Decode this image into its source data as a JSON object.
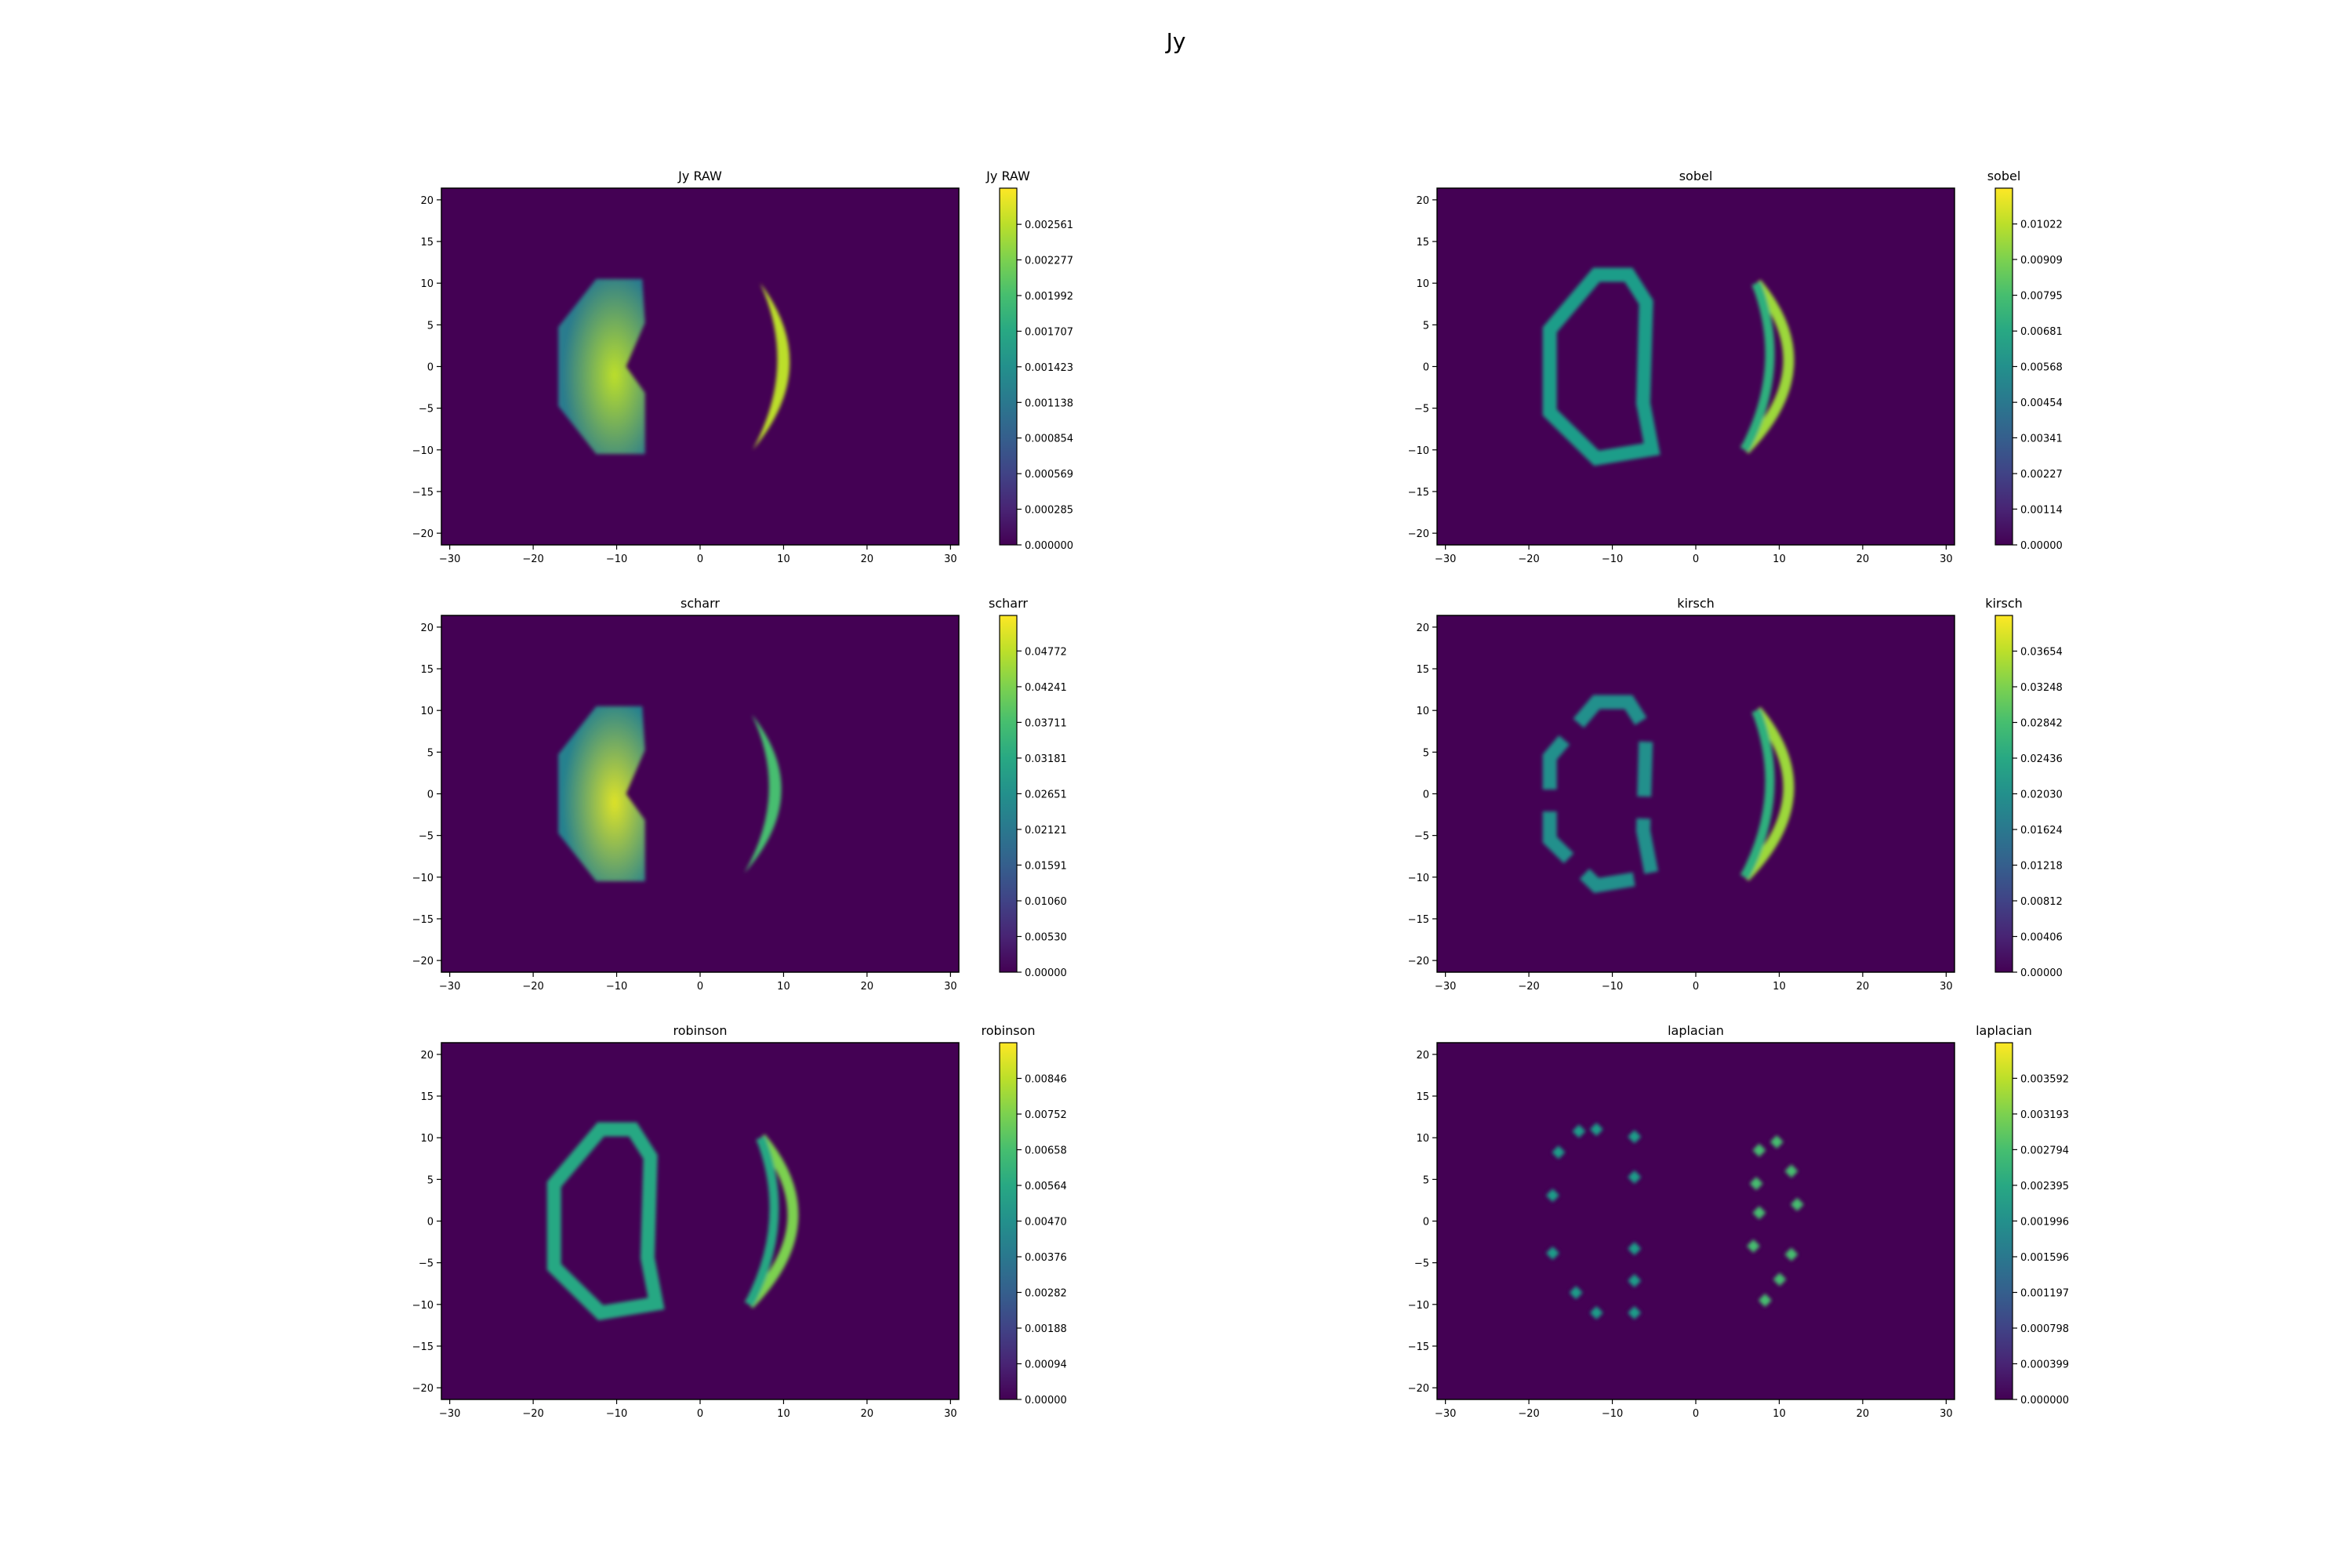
{
  "figure": {
    "title": "Jy"
  },
  "colormap": {
    "name": "viridis",
    "low": "#440154",
    "high": "#fde725"
  },
  "axes_common": {
    "xlim": [
      -31,
      31
    ],
    "ylim": [
      -21.4,
      21.4
    ],
    "xticks": [
      -30,
      -20,
      -10,
      0,
      10,
      20,
      30
    ],
    "yticks": [
      -20,
      -15,
      -10,
      -5,
      0,
      5,
      10,
      15,
      20
    ]
  },
  "chart_data": [
    {
      "type": "heatmap",
      "title": "Jy RAW",
      "colorbar_label": "Jy RAW",
      "colorbar_ticks": [
        "0.000000",
        "0.000285",
        "0.000569",
        "0.000854",
        "0.001138",
        "0.001423",
        "0.001707",
        "0.001992",
        "0.002277",
        "0.002561"
      ],
      "vmax": 0.00285,
      "features": [
        {
          "shape": "disk",
          "x": -10.5,
          "y": 0,
          "rx": 6.5,
          "ry": 10.5,
          "level": 0.75
        },
        {
          "shape": "crescent",
          "x": 9,
          "y": 0,
          "rx": 3,
          "ry": 10,
          "level": 0.9
        }
      ]
    },
    {
      "type": "heatmap",
      "title": "sobel",
      "colorbar_label": "sobel",
      "colorbar_ticks": [
        "0.00000",
        "0.00114",
        "0.00227",
        "0.00341",
        "0.00454",
        "0.00568",
        "0.00681",
        "0.00795",
        "0.00909",
        "0.01022"
      ],
      "vmax": 0.01136,
      "features": [
        {
          "shape": "ring",
          "x": -10.5,
          "y": 0,
          "rx": 7,
          "ry": 11,
          "level": 0.55
        },
        {
          "shape": "double-arc",
          "x": 9,
          "y": 0,
          "rx": 3.5,
          "ry": 10,
          "level": 0.85
        }
      ]
    },
    {
      "type": "heatmap",
      "title": "scharr",
      "colorbar_label": "scharr",
      "colorbar_ticks": [
        "0.00000",
        "0.00530",
        "0.01060",
        "0.01591",
        "0.02121",
        "0.02651",
        "0.03181",
        "0.03711",
        "0.04241",
        "0.04772"
      ],
      "vmax": 0.053,
      "features": [
        {
          "shape": "disk",
          "x": -10.5,
          "y": 0,
          "rx": 6.5,
          "ry": 10.5,
          "level": 0.8
        },
        {
          "shape": "crescent",
          "x": 8,
          "y": 0,
          "rx": 3,
          "ry": 9.5,
          "level": 0.7
        }
      ]
    },
    {
      "type": "heatmap",
      "title": "kirsch",
      "colorbar_label": "kirsch",
      "colorbar_ticks": [
        "0.00000",
        "0.00406",
        "0.00812",
        "0.01218",
        "0.01624",
        "0.02030",
        "0.02436",
        "0.02842",
        "0.03248",
        "0.03654"
      ],
      "vmax": 0.0406,
      "features": [
        {
          "shape": "broken-ring",
          "x": -10.5,
          "y": 0,
          "rx": 7,
          "ry": 11,
          "level": 0.5
        },
        {
          "shape": "double-arc",
          "x": 9,
          "y": 0,
          "rx": 3.5,
          "ry": 10,
          "level": 0.85
        }
      ]
    },
    {
      "type": "heatmap",
      "title": "robinson",
      "colorbar_label": "robinson",
      "colorbar_ticks": [
        "0.00000",
        "0.00094",
        "0.00188",
        "0.00282",
        "0.00376",
        "0.00470",
        "0.00564",
        "0.00658",
        "0.00752",
        "0.00846"
      ],
      "vmax": 0.0094,
      "features": [
        {
          "shape": "ring",
          "x": -10.5,
          "y": 0,
          "rx": 7,
          "ry": 11,
          "level": 0.6
        },
        {
          "shape": "double-arc",
          "x": 9,
          "y": 0,
          "rx": 3.5,
          "ry": 10,
          "level": 0.8
        }
      ]
    },
    {
      "type": "heatmap",
      "title": "laplacian",
      "colorbar_label": "laplacian",
      "colorbar_ticks": [
        "0.000000",
        "0.000399",
        "0.000798",
        "0.001197",
        "0.001596",
        "0.001996",
        "0.002395",
        "0.002794",
        "0.003193",
        "0.003592"
      ],
      "vmax": 0.00399,
      "features": [
        {
          "shape": "dots-left",
          "x": -10.5,
          "y": 0,
          "rx": 7,
          "ry": 11,
          "level": 0.55
        },
        {
          "shape": "dots-right",
          "x": 9,
          "y": 0,
          "rx": 3.5,
          "ry": 10,
          "level": 0.7
        }
      ]
    }
  ]
}
